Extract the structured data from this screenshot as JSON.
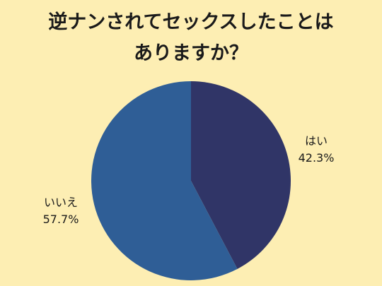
{
  "chart_data": {
    "type": "pie",
    "title_lines": [
      "逆ナンされてセックスしたことは",
      "ありますか？"
    ],
    "slices": [
      {
        "label": "はい",
        "value": 42.3,
        "display": "42.3%",
        "color": "#303567"
      },
      {
        "label": "いいえ",
        "value": 57.7,
        "display": "57.7%",
        "color": "#2f5e96"
      }
    ],
    "start_angle": "12 o'clock",
    "direction": "clockwise",
    "legend": "none"
  }
}
